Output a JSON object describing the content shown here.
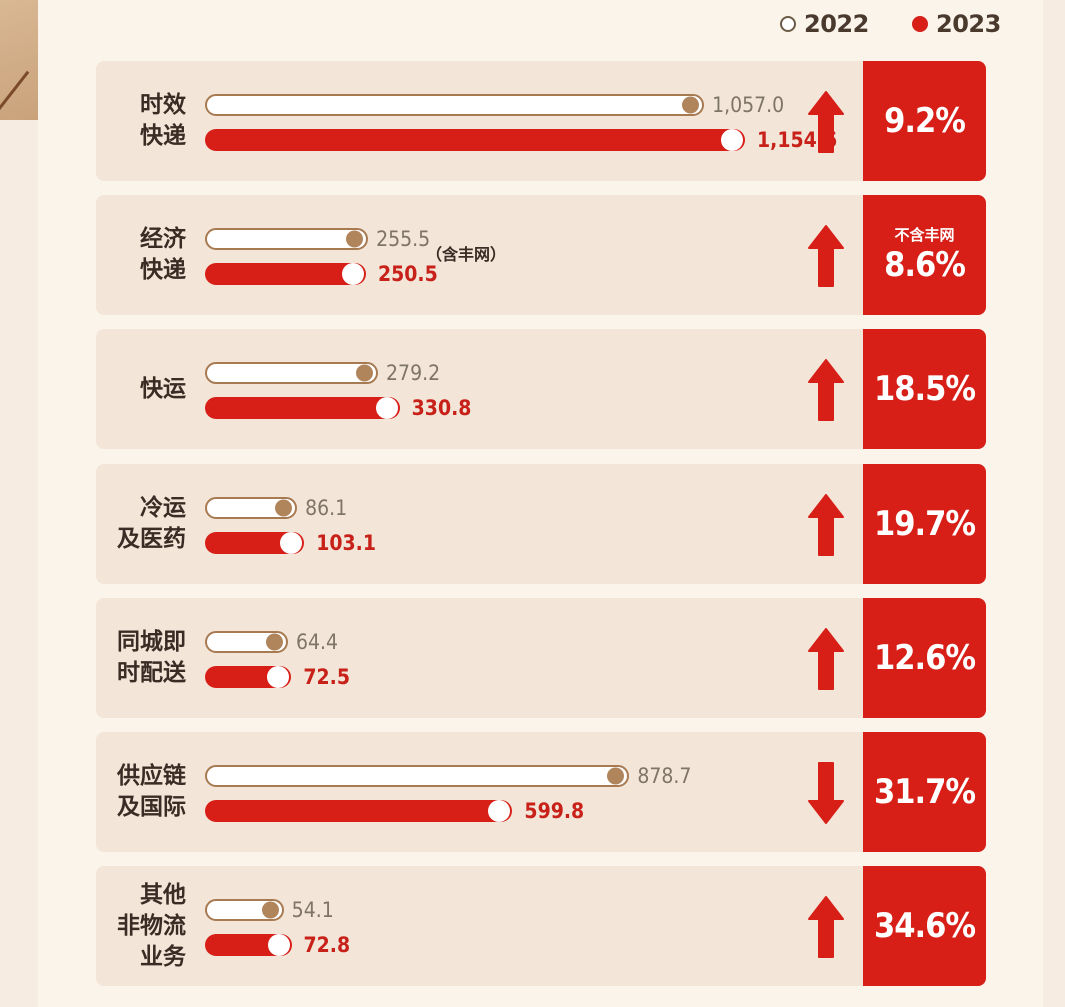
{
  "legend": [
    {
      "label": "2022",
      "color": "#ffffff"
    },
    {
      "label": "2023",
      "color": "#d71f18"
    }
  ],
  "chart_data": {
    "type": "bar",
    "series": [
      {
        "name": "2022",
        "values": [
          1057.0,
          255.5,
          279.2,
          86.1,
          64.4,
          878.7,
          54.1
        ]
      },
      {
        "name": "2023",
        "values": [
          1154.6,
          250.5,
          330.8,
          103.1,
          72.5,
          599.8,
          72.8
        ]
      }
    ],
    "rows": [
      {
        "label_lines": [
          "时效",
          "快递"
        ],
        "v2022": "1,057.0",
        "v2023": "1,154.6",
        "n2022": 1057.0,
        "n2023": 1154.6,
        "direction": "up",
        "change": "9.2%",
        "change_note": "",
        "value_note": ""
      },
      {
        "label_lines": [
          "经济",
          "快递"
        ],
        "v2022": "255.5",
        "v2023": "250.5",
        "n2022": 255.5,
        "n2023": 250.5,
        "direction": "up",
        "change": "8.6%",
        "change_note": "不含丰网",
        "value_note": "（含丰网）"
      },
      {
        "label_lines": [
          "快运"
        ],
        "v2022": "279.2",
        "v2023": "330.8",
        "n2022": 279.2,
        "n2023": 330.8,
        "direction": "up",
        "change": "18.5%",
        "change_note": "",
        "value_note": ""
      },
      {
        "label_lines": [
          "冷运",
          "及医药"
        ],
        "v2022": "86.1",
        "v2023": "103.1",
        "n2022": 86.1,
        "n2023": 103.1,
        "direction": "up",
        "change": "19.7%",
        "change_note": "",
        "value_note": ""
      },
      {
        "label_lines": [
          "同城即",
          "时配送"
        ],
        "v2022": "64.4",
        "v2023": "72.5",
        "n2022": 64.4,
        "n2023": 72.5,
        "direction": "up",
        "change": "12.6%",
        "change_note": "",
        "value_note": ""
      },
      {
        "label_lines": [
          "供应链",
          "及国际"
        ],
        "v2022": "878.7",
        "v2023": "599.8",
        "n2022": 878.7,
        "n2023": 599.8,
        "direction": "down",
        "change": "31.7%",
        "change_note": "",
        "value_note": ""
      },
      {
        "label_lines": [
          "其他",
          "非物流",
          "业务"
        ],
        "v2022": "54.1",
        "v2023": "72.8",
        "n2022": 54.1,
        "n2023": 72.8,
        "direction": "up",
        "change": "34.6%",
        "change_note": "",
        "value_note": ""
      }
    ],
    "colors": {
      "accent": "#d71f18",
      "knob_2022": "#b0855c",
      "row_bg": "#f3e6d8"
    }
  }
}
